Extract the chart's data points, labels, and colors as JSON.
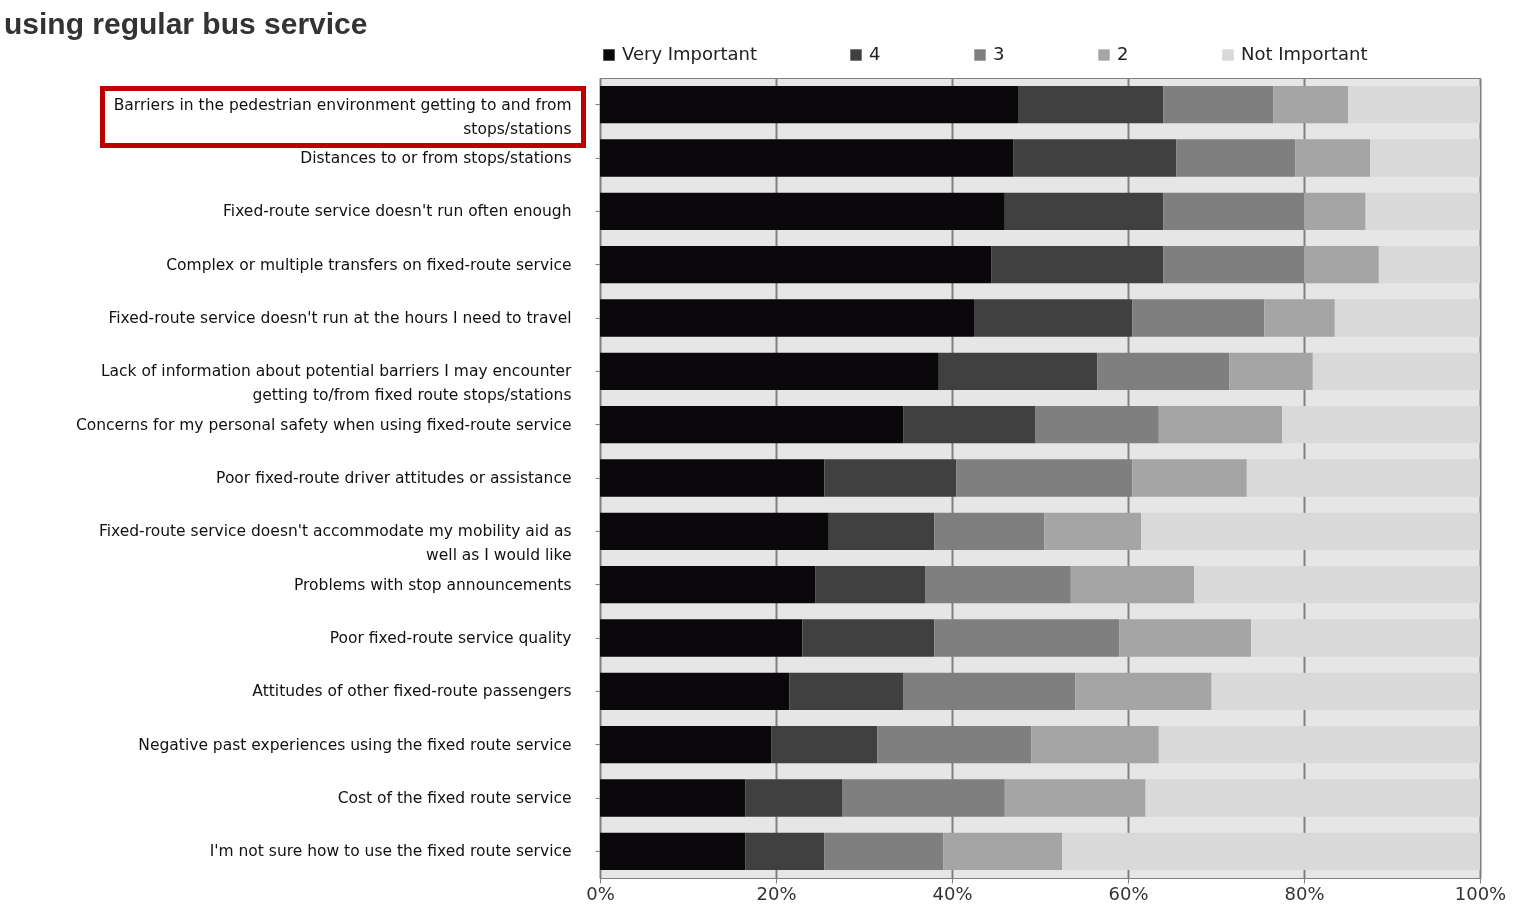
{
  "chart_data": {
    "type": "bar",
    "orientation": "horizontal",
    "stacked": true,
    "title": "using regular bus service",
    "categories": [
      "Barriers in the pedestrian environment getting to and from stops/stations",
      "Distances to or from stops/stations",
      "Fixed-route service doesn't run often enough",
      "Complex or multiple transfers on fixed-route service",
      "Fixed-route service doesn't run at the hours I need to travel",
      "Lack of information about potential barriers I may encounter getting to/from fixed route stops/stations",
      "Concerns for my personal safety when using fixed-route service",
      "Poor fixed-route driver attitudes or assistance",
      "Fixed-route service doesn't accommodate my mobility aid as well as I would like",
      "Problems with stop announcements",
      "Poor fixed-route service quality",
      "Attitudes of other fixed-route passengers",
      "Negative past experiences using the fixed route service",
      "Cost of the fixed route service",
      "I'm not sure how to use the fixed route service"
    ],
    "series": [
      {
        "name": "Very Important",
        "color": "#0a080a",
        "values": [
          47.5,
          47,
          46,
          44.5,
          42.5,
          38.5,
          34.5,
          25.5,
          26,
          24.5,
          23,
          21.5,
          19.5,
          16.5,
          16.5
        ]
      },
      {
        "name": "4",
        "color": "#404040",
        "values": [
          16.5,
          18.5,
          18,
          19.5,
          18,
          18,
          15,
          15,
          12,
          12.5,
          15,
          13,
          12,
          11,
          9
        ]
      },
      {
        "name": "3",
        "color": "#7f7f7f",
        "values": [
          12.5,
          13.5,
          16,
          16,
          15,
          15,
          14,
          20,
          12.5,
          16.5,
          21,
          19.5,
          17.5,
          18.5,
          13.5
        ]
      },
      {
        "name": "2",
        "color": "#a5a5a5",
        "values": [
          8.5,
          8.5,
          7,
          8.5,
          8,
          9.5,
          14,
          13,
          11,
          14,
          15,
          15.5,
          14.5,
          16,
          13.5
        ]
      },
      {
        "name": "Not Important",
        "color": "#d9d9d9",
        "values": [
          15,
          12.5,
          13,
          11.5,
          16.5,
          19,
          22.5,
          26.5,
          38.5,
          32.5,
          26,
          30.5,
          36.5,
          38,
          47.5
        ]
      }
    ],
    "xlim": [
      0,
      100
    ],
    "xticks": [
      {
        "value": 0,
        "label": "0%"
      },
      {
        "value": 20,
        "label": "20%"
      },
      {
        "value": 40,
        "label": "40%"
      },
      {
        "value": 60,
        "label": "60%"
      },
      {
        "value": 80,
        "label": "80%"
      },
      {
        "value": 100,
        "label": "100%"
      }
    ],
    "grid": "x",
    "legend": "top"
  }
}
